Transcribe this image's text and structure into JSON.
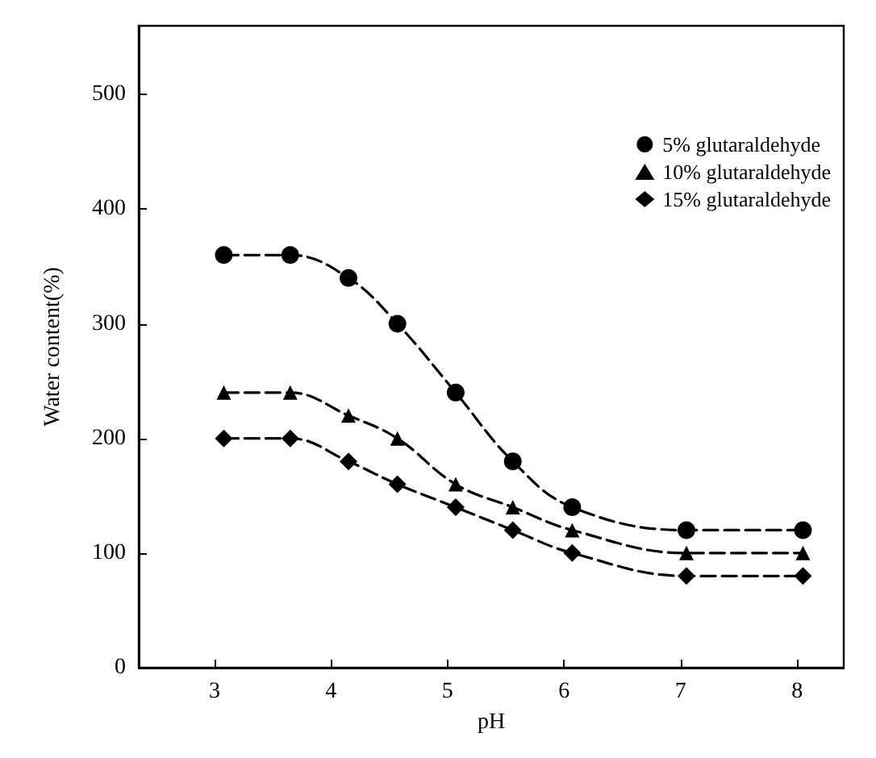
{
  "chart_data": {
    "type": "line",
    "xlabel": "pH",
    "ylabel": "Water content(%)",
    "xlim": [
      2.35,
      8.4
    ],
    "xticks": [
      3,
      4,
      5,
      6,
      7,
      8
    ],
    "ylim": [
      0,
      560
    ],
    "yticks": [
      0,
      100,
      200,
      300,
      400,
      500
    ],
    "x": [
      3.08,
      3.65,
      4.15,
      4.57,
      5.07,
      5.56,
      6.07,
      7.05,
      8.05
    ],
    "series": [
      {
        "name": "5% glutaraldehyde",
        "color": "#000000",
        "marker": "circle",
        "values": [
          360,
          360,
          340,
          300,
          240,
          180,
          140,
          120,
          120
        ]
      },
      {
        "name": "10% glutaraldehyde",
        "color": "#000000",
        "marker": "triangle",
        "values": [
          240,
          240,
          220,
          200,
          160,
          140,
          120,
          100,
          100
        ]
      },
      {
        "name": "15% glutaraldehyde",
        "color": "#000000",
        "marker": "diamond",
        "values": [
          200,
          200,
          180,
          160,
          140,
          120,
          100,
          80,
          80
        ]
      }
    ],
    "line_style": "dashed",
    "legend": "top right",
    "grid": false
  }
}
